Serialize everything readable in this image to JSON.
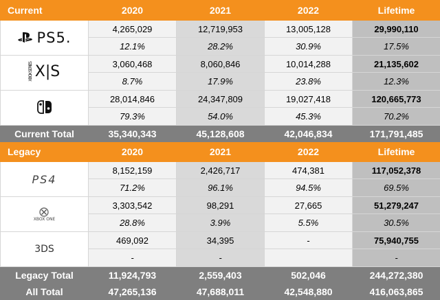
{
  "current": {
    "header": {
      "label": "Current",
      "y2020": "2020",
      "y2021": "2021",
      "y2022": "2022",
      "lifetime": "Lifetime"
    },
    "platforms": [
      {
        "icon": "ps5-logo-icon",
        "logo_text": "PS5.",
        "units": [
          "4,265,029",
          "12,719,953",
          "13,005,128",
          "29,990,110"
        ],
        "shares": [
          "12.1%",
          "28.2%",
          "30.9%",
          "17.5%"
        ]
      },
      {
        "icon": "xbox-series-xs-logo-icon",
        "logo_text": "X|S",
        "logo_small": "XBOX SERIES",
        "units": [
          "3,060,468",
          "8,060,846",
          "10,014,288",
          "21,135,602"
        ],
        "shares": [
          "8.7%",
          "17.9%",
          "23.8%",
          "12.3%"
        ]
      },
      {
        "icon": "nintendo-switch-logo-icon",
        "units": [
          "28,014,846",
          "24,347,809",
          "19,027,418",
          "120,665,773"
        ],
        "shares": [
          "79.3%",
          "54.0%",
          "45.3%",
          "70.2%"
        ]
      }
    ],
    "total": {
      "label": "Current Total",
      "values": [
        "35,340,343",
        "45,128,608",
        "42,046,834",
        "171,791,485"
      ]
    }
  },
  "legacy": {
    "header": {
      "label": "Legacy",
      "y2020": "2020",
      "y2021": "2021",
      "y2022": "2022",
      "lifetime": "Lifetime"
    },
    "platforms": [
      {
        "icon": "ps4-logo-icon",
        "logo_text": "PS4",
        "units": [
          "8,152,159",
          "2,426,717",
          "474,381",
          "117,052,378"
        ],
        "shares": [
          "71.2%",
          "96.1%",
          "94.5%",
          "69.5%"
        ]
      },
      {
        "icon": "xbox-one-logo-icon",
        "logo_text": "XBOX ONE",
        "units": [
          "3,303,542",
          "98,291",
          "27,665",
          "51,279,247"
        ],
        "shares": [
          "28.8%",
          "3.9%",
          "5.5%",
          "30.5%"
        ]
      },
      {
        "icon": "3ds-logo-icon",
        "logo_text": "3DS",
        "units": [
          "469,092",
          "34,395",
          "-",
          "75,940,755"
        ],
        "shares": [
          "-",
          "-",
          "",
          "-"
        ]
      }
    ],
    "total": {
      "label": "Legacy Total",
      "values": [
        "11,924,793",
        "2,559,403",
        "502,046",
        "244,272,380"
      ]
    }
  },
  "all_total": {
    "label": "All Total",
    "values": [
      "47,265,136",
      "47,688,011",
      "42,548,880",
      "416,063,865"
    ]
  },
  "colors": {
    "header": "#f4901d",
    "total": "#7f7f7f",
    "col_2020": "#f2f2f2",
    "col_2021": "#d9d9d9",
    "col_2022": "#f2f2f2",
    "col_lifetime": "#bfbfbf"
  }
}
